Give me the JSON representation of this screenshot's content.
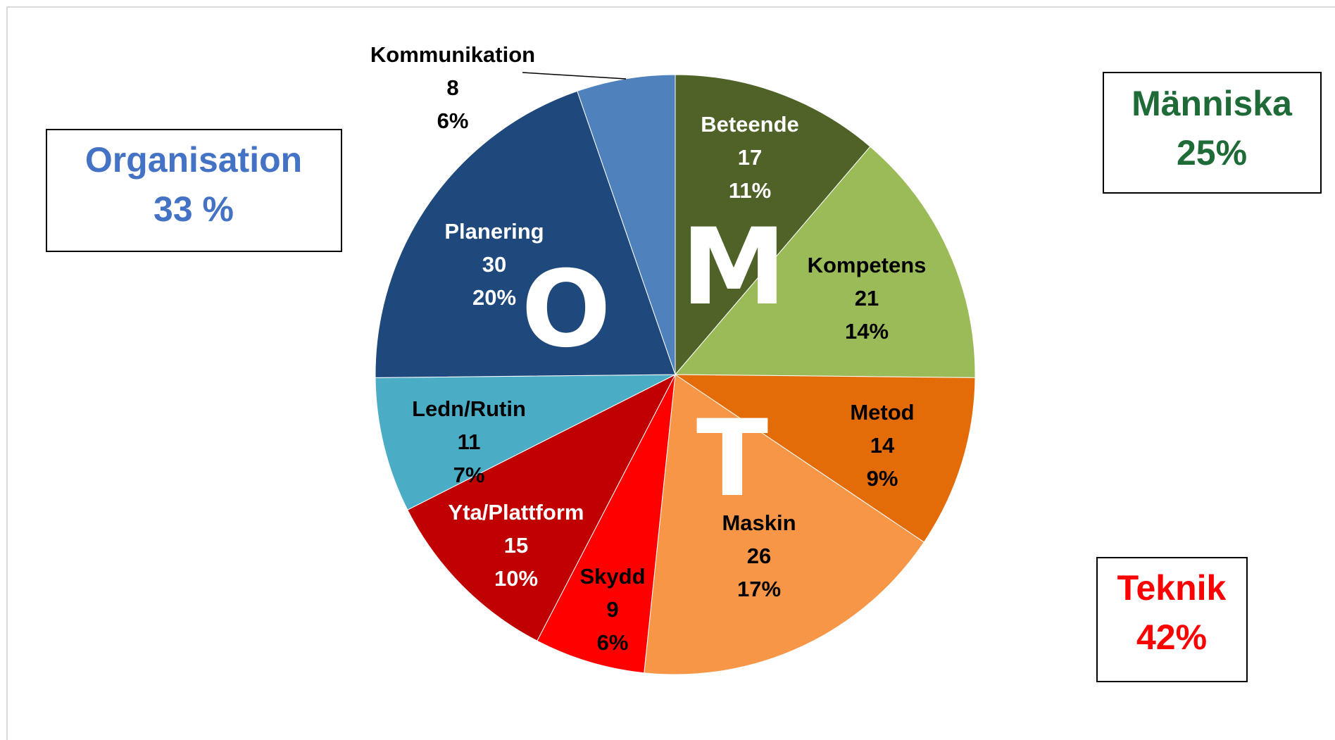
{
  "chart_data": {
    "type": "pie",
    "categories": [
      "Beteende",
      "Kompetens",
      "Metod",
      "Maskin",
      "Skydd",
      "Yta/Plattform",
      "Ledn/Rutin",
      "Planering",
      "Kommunikation"
    ],
    "values": [
      17,
      21,
      14,
      26,
      9,
      15,
      11,
      30,
      8
    ],
    "percent_labels": [
      "11%",
      "14%",
      "9%",
      "17%",
      "6%",
      "10%",
      "7%",
      "20%",
      "6%"
    ],
    "colors": [
      "#4f6228",
      "#9bbb59",
      "#e36c09",
      "#f79646",
      "#ff0000",
      "#c00000",
      "#4bacc6",
      "#1f497d",
      "#4f81bd"
    ],
    "label_colors": [
      "#ffffff",
      "#000000",
      "#000000",
      "#000000",
      "#000000",
      "#ffffff",
      "#000000",
      "#ffffff",
      "#000000"
    ],
    "letters": [
      "M",
      "T",
      "O"
    ],
    "groups": [
      {
        "name": "Organisation",
        "share": "33 %",
        "color": "#4472c4"
      },
      {
        "name": "Människa",
        "share": "25%",
        "color": "#1e6b38"
      },
      {
        "name": "Teknik",
        "share": "42%",
        "color": "#ff0000"
      }
    ]
  }
}
